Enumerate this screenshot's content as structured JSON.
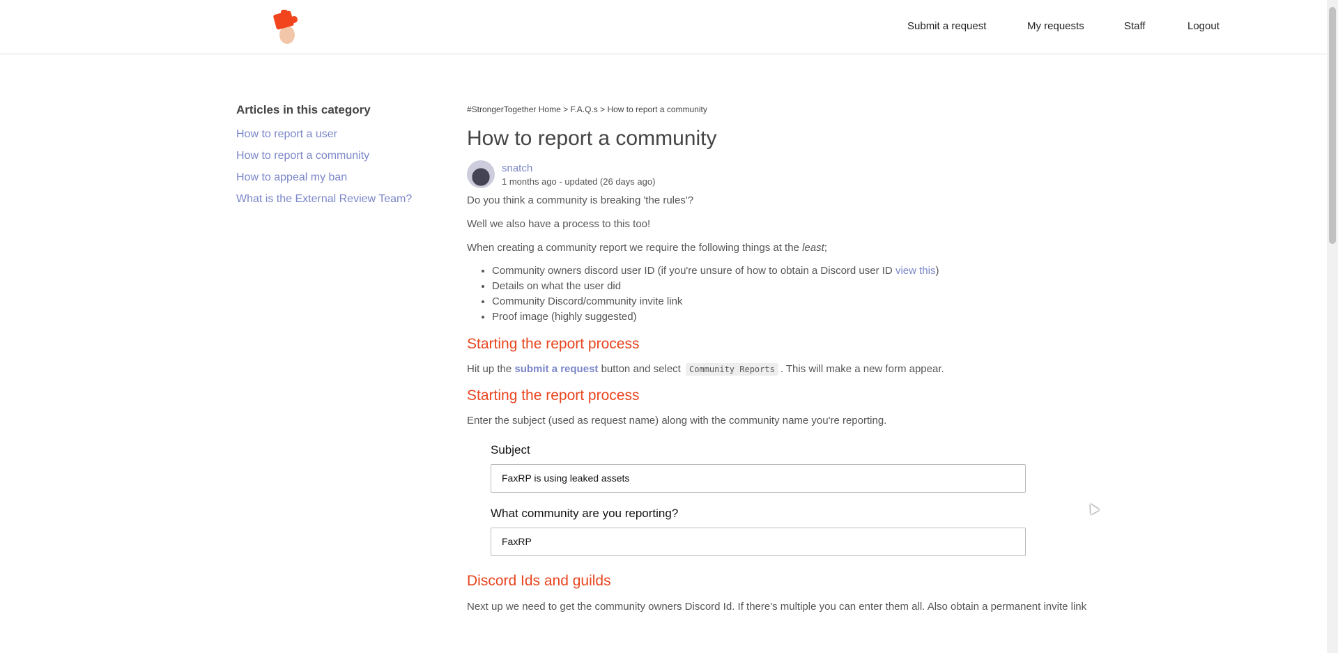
{
  "header": {
    "nav": [
      "Submit a request",
      "My requests",
      "Staff",
      "Logout"
    ]
  },
  "sidebar": {
    "title": "Articles in this category",
    "items": [
      "How to report a user",
      "How to report a community",
      "How to appeal my ban",
      "What is the External Review Team?"
    ]
  },
  "breadcrumb": [
    "#StrongerTogether Home",
    "F.A.Q.s",
    "How to report a community"
  ],
  "article": {
    "title": "How to report a community",
    "author": "snatch",
    "meta": "1 months ago - updated (26 days ago)",
    "p1": "Do you think a community is breaking 'the rules'?",
    "p2": "Well we also have a process to this too!",
    "p3a": "When creating a community report we require the following things at the ",
    "p3em": "least",
    "p3b": ";",
    "li1a": "Community owners discord user ID (if you're unsure of how to obtain a Discord user ID ",
    "li1link": "view this",
    "li1b": ")",
    "li2": "Details on what the user did",
    "li3": "Community Discord/community invite link",
    "li4": "Proof image (highly suggested)",
    "h2a": "Starting the report process",
    "p4a": "Hit up the ",
    "p4link": "submit a request",
    "p4b": " button and select ",
    "p4code": "Community Reports",
    "p4c": ". This will make a new form appear.",
    "h2b": "Starting the report process",
    "p5": "Enter the subject (used as request name) along with the community name you're reporting.",
    "form": {
      "label1": "Subject",
      "value1": "FaxRP is using leaked assets",
      "label2": "What community are you reporting?",
      "value2": "FaxRP"
    },
    "h2c": "Discord Ids and guilds",
    "p6": "Next up we need to get the community owners Discord Id. If there's multiple you can enter them all. Also obtain a permanent invite link"
  },
  "colors": {
    "accent": "#e8441e",
    "link": "#7a86c8"
  }
}
